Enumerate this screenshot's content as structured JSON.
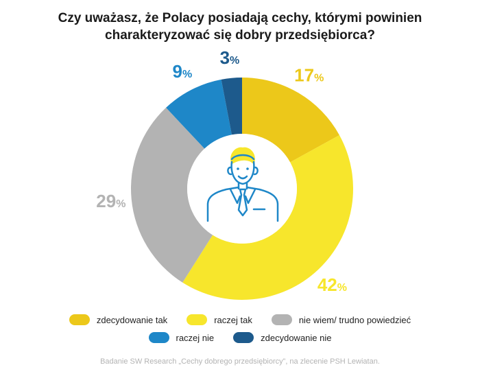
{
  "title": {
    "line1": "Czy uważasz, że Polacy posiadają cechy, którymi powinien",
    "line2": "charakteryzować się dobry przedsiębiorca?"
  },
  "chart_data": {
    "type": "pie",
    "donut": true,
    "slices": [
      {
        "name": "zdecydowanie tak",
        "value": 17,
        "label": "17",
        "color": "#ecc81a"
      },
      {
        "name": "raczej tak",
        "value": 42,
        "label": "42",
        "color": "#f7e62c"
      },
      {
        "name": "nie wiem/ trudno powiedzieć",
        "value": 29,
        "label": "29",
        "color": "#b3b3b3"
      },
      {
        "name": "raczej nie",
        "value": 9,
        "label": "9",
        "color": "#1e87c8"
      },
      {
        "name": "zdecydowanie nie",
        "value": 3,
        "label": "3",
        "color": "#1d5a8c"
      }
    ],
    "percent_sign": "%",
    "center_icon": "businessman-icon"
  },
  "legend": {
    "row1": [
      "zdecydowanie tak",
      "raczej tak",
      "nie wiem/ trudno powiedzieć"
    ],
    "row2": [
      "raczej nie",
      "zdecydowanie nie"
    ]
  },
  "source": "Badanie SW Research „Cechy dobrego przedsiębiorcy”, na zlecenie PSH Lewiatan."
}
